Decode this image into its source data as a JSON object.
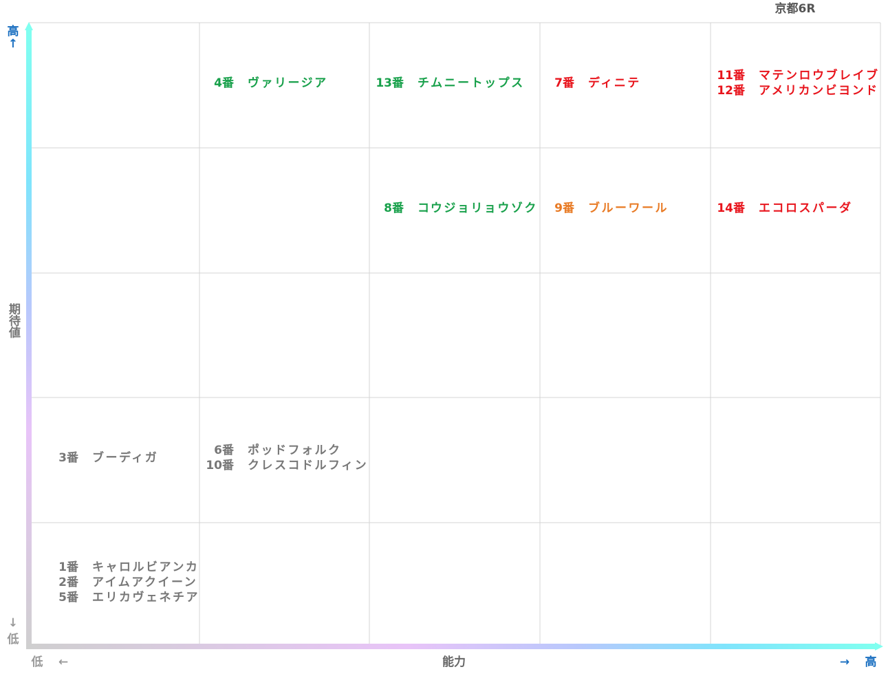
{
  "title": "京都6R",
  "y_axis": {
    "high": "高",
    "high_arrow": "↑",
    "label": "期待値",
    "low_arrow": "↓",
    "low": "低"
  },
  "x_axis": {
    "low": "低",
    "low_arrow": "←",
    "label": "能力",
    "high_arrow": "→",
    "high": "高"
  },
  "grid": [
    [
      {
        "entries": []
      },
      {
        "color": "#17a04a",
        "entries": [
          {
            "number": "4番",
            "name": "ヴァリージア"
          }
        ]
      },
      {
        "color": "#17a04a",
        "entries": [
          {
            "number": "13番",
            "name": "チムニートップス"
          }
        ]
      },
      {
        "color": "#e8141c",
        "entries": [
          {
            "number": "7番",
            "name": "ディニテ"
          }
        ]
      },
      {
        "color": "#e8141c",
        "entries": [
          {
            "number": "11番",
            "name": "マテンロウブレイブ"
          },
          {
            "number": "12番",
            "name": "アメリカンビヨンド"
          }
        ]
      }
    ],
    [
      {
        "entries": []
      },
      {
        "entries": []
      },
      {
        "color": "#17a04a",
        "entries": [
          {
            "number": "8番",
            "name": "コウジョリョウゾク"
          }
        ]
      },
      {
        "color": "#e87a24",
        "entries": [
          {
            "number": "9番",
            "name": "ブルーワール"
          }
        ]
      },
      {
        "color": "#e8141c",
        "entries": [
          {
            "number": "14番",
            "name": "エコロスパーダ"
          }
        ]
      }
    ],
    [
      {
        "entries": []
      },
      {
        "entries": []
      },
      {
        "entries": []
      },
      {
        "entries": []
      },
      {
        "entries": []
      }
    ],
    [
      {
        "color": "#777777",
        "entries": [
          {
            "number": "3番",
            "name": "ブーディガ"
          }
        ]
      },
      {
        "color": "#777777",
        "entries": [
          {
            "number": "6番",
            "name": "ポッドフォルク"
          },
          {
            "number": "10番",
            "name": "クレスコドルフィン"
          }
        ]
      },
      {
        "entries": []
      },
      {
        "entries": []
      },
      {
        "entries": []
      }
    ],
    [
      {
        "color": "#777777",
        "entries": [
          {
            "number": "1番",
            "name": "キャロルビアンカ"
          },
          {
            "number": "2番",
            "name": "アイムアクイーン"
          },
          {
            "number": "5番",
            "name": "エリカヴェネチア"
          }
        ]
      },
      {
        "entries": []
      },
      {
        "entries": []
      },
      {
        "entries": []
      },
      {
        "entries": []
      }
    ]
  ]
}
